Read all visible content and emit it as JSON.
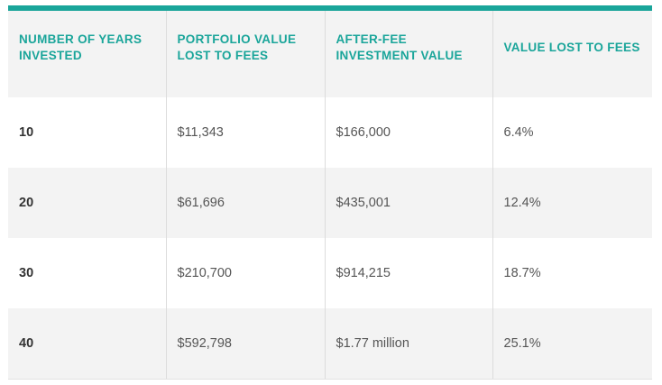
{
  "table": {
    "headers": [
      "NUMBER OF YEARS INVESTED",
      "PORTFOLIO VALUE LOST TO FEES",
      "AFTER-FEE INVESTMENT VALUE",
      "VALUE LOST TO FEES"
    ],
    "rows": [
      [
        "10",
        "$11,343",
        "$166,000",
        "6.4%"
      ],
      [
        "20",
        "$61,696",
        "$435,001",
        "12.4%"
      ],
      [
        "30",
        "$210,700",
        "$914,215",
        "18.7%"
      ],
      [
        "40",
        "$592,798",
        "$1.77 million",
        "25.1%"
      ]
    ]
  },
  "colors": {
    "accent": "#1aa59a",
    "row_alt": "#f3f3f3",
    "text": "#555555"
  }
}
